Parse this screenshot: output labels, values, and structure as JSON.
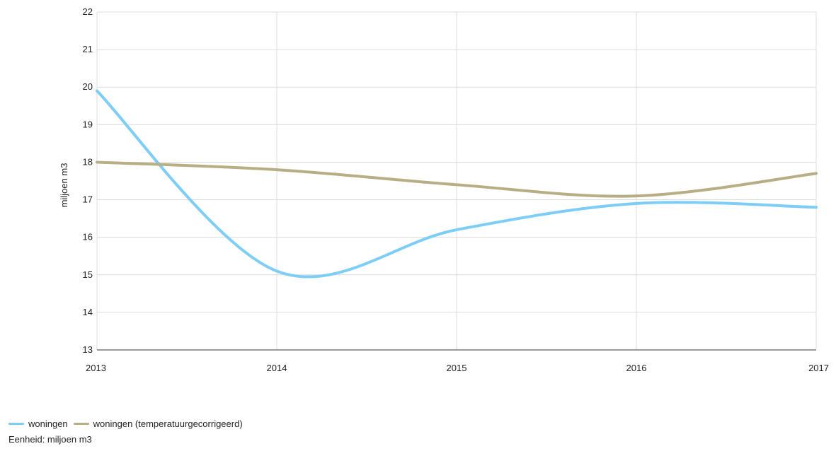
{
  "chart_data": {
    "type": "line",
    "title": "",
    "xlabel": "",
    "ylabel": "miljoen m3",
    "x": [
      2013,
      2014,
      2015,
      2016,
      2017
    ],
    "xlim": [
      2013,
      2017
    ],
    "ylim": [
      13,
      22
    ],
    "x_ticks": [
      "2013",
      "2014",
      "2015",
      "2016",
      "2017"
    ],
    "y_ticks": [
      "13",
      "14",
      "15",
      "16",
      "17",
      "18",
      "19",
      "20",
      "21",
      "22"
    ],
    "grid": true,
    "legend_position": "bottom-left",
    "series": [
      {
        "name": "woningen",
        "color": "#7dcdf7",
        "values": [
          19.9,
          15.1,
          16.2,
          16.9,
          16.8
        ]
      },
      {
        "name": "woningen (temperatuurgecorrigeerd)",
        "color": "#b8ae86",
        "values": [
          18.0,
          17.8,
          17.4,
          17.1,
          17.7
        ]
      }
    ]
  },
  "unit_note": "Eenheid: miljoen m3"
}
